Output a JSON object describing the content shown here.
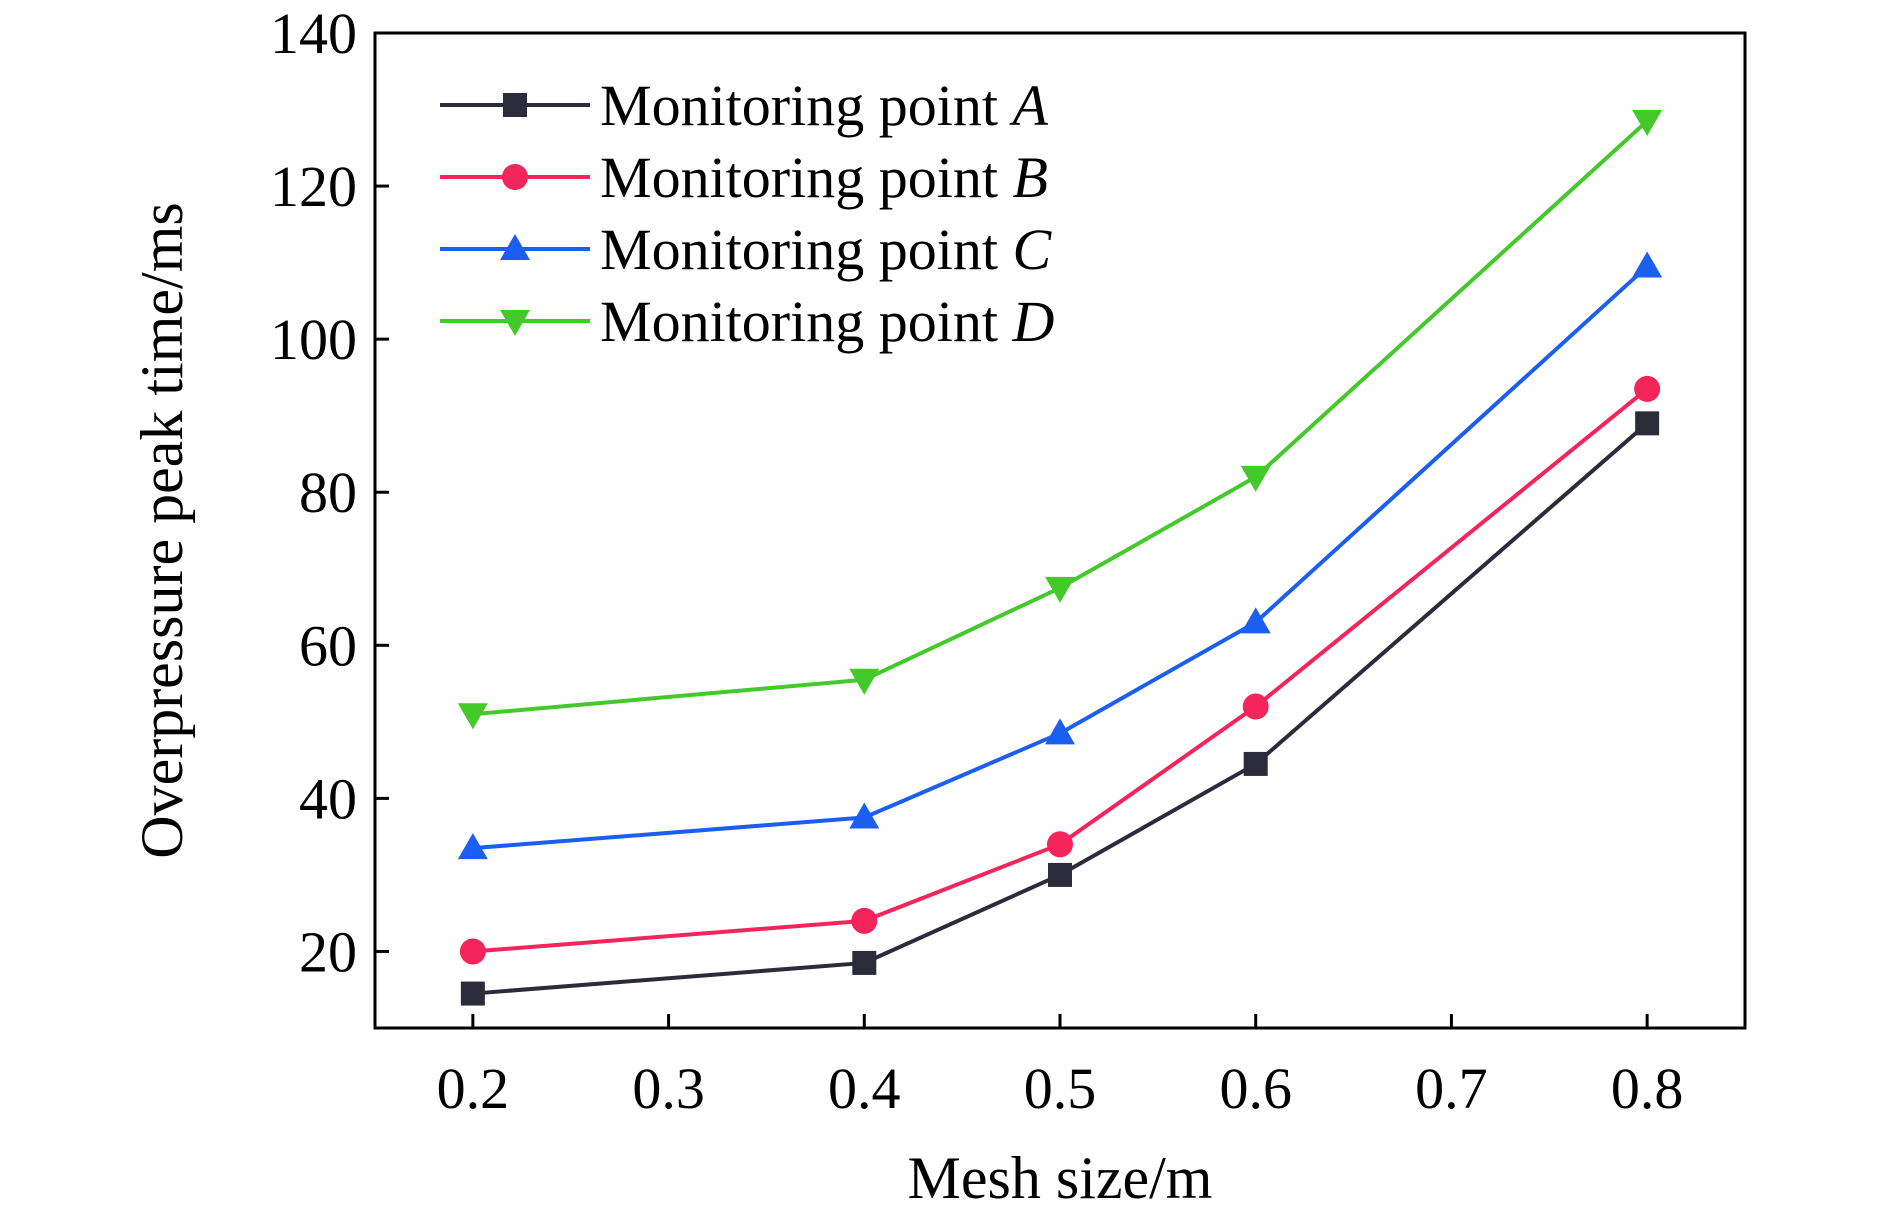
{
  "chart_data": {
    "type": "line",
    "xlabel": "Mesh size/m",
    "ylabel": "Overpressure peak time/ms",
    "xlim": [
      0.15,
      0.85
    ],
    "ylim": [
      10,
      140
    ],
    "x_ticks": [
      0.2,
      0.3,
      0.4,
      0.5,
      0.6,
      0.7,
      0.8
    ],
    "x_tick_labels": [
      "0.2",
      "0.3",
      "0.4",
      "0.5",
      "0.6",
      "0.7",
      "0.8"
    ],
    "x_positions": [
      0.2,
      0.3,
      0.4,
      0.5,
      0.6,
      0.7,
      0.8
    ],
    "y_ticks": [
      20,
      40,
      60,
      80,
      100,
      120,
      140
    ],
    "y_tick_labels": [
      "20",
      "40",
      "60",
      "80",
      "100",
      "120",
      "140"
    ],
    "grid": false,
    "legend_position": "top-left",
    "categories": [
      "0.2",
      "0.4",
      "0.5",
      "0.6",
      "0.8"
    ],
    "x": [
      0.2,
      0.4,
      0.5,
      0.6,
      0.8
    ],
    "series": [
      {
        "name_prefix": "Monitoring point ",
        "name_var": "A",
        "marker": "square",
        "color": "#2b2b3a",
        "values": [
          14.5,
          18.5,
          30,
          44.5,
          89
        ]
      },
      {
        "name_prefix": "Monitoring point ",
        "name_var": "B",
        "marker": "circle",
        "color": "#f5245a",
        "values": [
          20,
          24,
          34,
          52,
          93.5
        ]
      },
      {
        "name_prefix": "Monitoring point ",
        "name_var": "C",
        "marker": "triangle-up",
        "color": "#1c5ff0",
        "values": [
          33.5,
          37.5,
          48.5,
          63,
          109.5
        ]
      },
      {
        "name_prefix": "Monitoring point ",
        "name_var": "D",
        "marker": "triangle-down",
        "color": "#44c92a",
        "values": [
          51,
          55.5,
          67.5,
          82,
          128.5
        ]
      }
    ]
  }
}
